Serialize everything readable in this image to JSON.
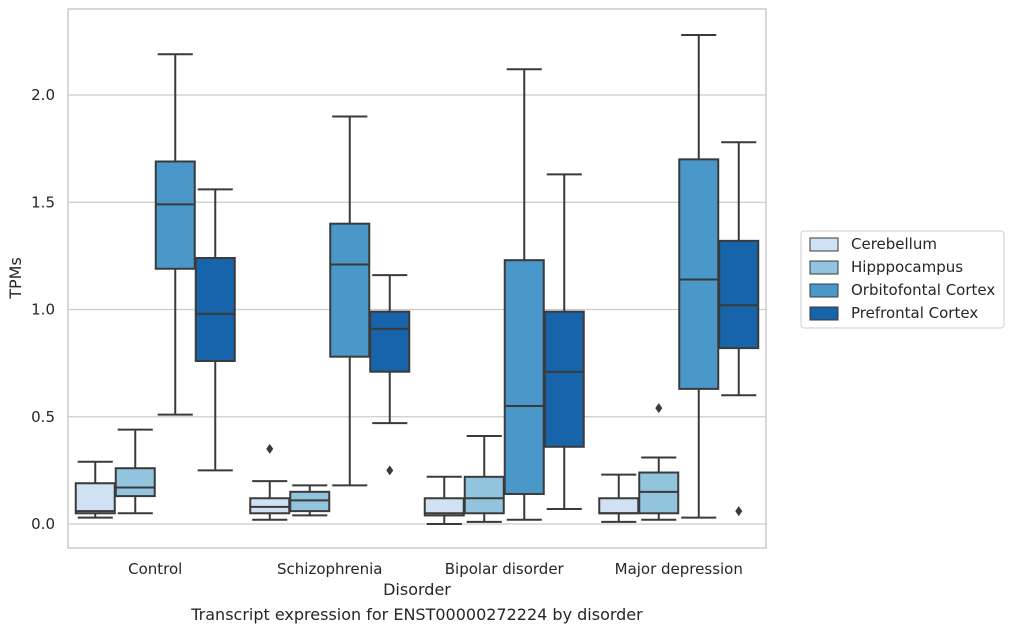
{
  "caption": "Transcript expression for ENST00000272224 by disorder",
  "chart_data": {
    "type": "box",
    "title": "",
    "xlabel": "Disorder",
    "ylabel": "TPMs",
    "categories": [
      "Control",
      "Schizophrenia",
      "Bipolar disorder",
      "Major depression"
    ],
    "ylim": [
      -0.11,
      2.4
    ],
    "yticks": [
      "0.0",
      "0.5",
      "1.0",
      "1.5",
      "2.0"
    ],
    "grid": true,
    "legend_position": "right",
    "series": [
      {
        "name": "Cerebellum",
        "color": "#cfe1f2",
        "boxes": [
          {
            "whisker_low": 0.03,
            "q1": 0.05,
            "median": 0.06,
            "q3": 0.19,
            "whisker_high": 0.29,
            "outliers": []
          },
          {
            "whisker_low": 0.02,
            "q1": 0.05,
            "median": 0.08,
            "q3": 0.12,
            "whisker_high": 0.2,
            "outliers": [
              0.35
            ]
          },
          {
            "whisker_low": 0.0,
            "q1": 0.04,
            "median": 0.05,
            "q3": 0.12,
            "whisker_high": 0.22,
            "outliers": []
          },
          {
            "whisker_low": 0.01,
            "q1": 0.05,
            "median": 0.05,
            "q3": 0.12,
            "whisker_high": 0.23,
            "outliers": []
          }
        ]
      },
      {
        "name": "Hipppocampus",
        "color": "#93c4de",
        "boxes": [
          {
            "whisker_low": 0.05,
            "q1": 0.13,
            "median": 0.17,
            "q3": 0.26,
            "whisker_high": 0.44,
            "outliers": []
          },
          {
            "whisker_low": 0.04,
            "q1": 0.06,
            "median": 0.11,
            "q3": 0.15,
            "whisker_high": 0.18,
            "outliers": []
          },
          {
            "whisker_low": 0.01,
            "q1": 0.05,
            "median": 0.12,
            "q3": 0.22,
            "whisker_high": 0.41,
            "outliers": []
          },
          {
            "whisker_low": 0.02,
            "q1": 0.05,
            "median": 0.15,
            "q3": 0.24,
            "whisker_high": 0.31,
            "outliers": [
              0.54
            ]
          }
        ]
      },
      {
        "name": "Orbitofontal Cortex",
        "color": "#4a98c9",
        "boxes": [
          {
            "whisker_low": 0.51,
            "q1": 1.19,
            "median": 1.49,
            "q3": 1.69,
            "whisker_high": 2.19,
            "outliers": []
          },
          {
            "whisker_low": 0.18,
            "q1": 0.78,
            "median": 1.21,
            "q3": 1.4,
            "whisker_high": 1.9,
            "outliers": []
          },
          {
            "whisker_low": 0.02,
            "q1": 0.14,
            "median": 0.55,
            "q3": 1.23,
            "whisker_high": 2.12,
            "outliers": []
          },
          {
            "whisker_low": 0.03,
            "q1": 0.63,
            "median": 1.14,
            "q3": 1.7,
            "whisker_high": 2.28,
            "outliers": []
          }
        ]
      },
      {
        "name": "Prefrontal Cortex",
        "color": "#1764ab",
        "boxes": [
          {
            "whisker_low": 0.25,
            "q1": 0.76,
            "median": 0.98,
            "q3": 1.24,
            "whisker_high": 1.56,
            "outliers": []
          },
          {
            "whisker_low": 0.47,
            "q1": 0.71,
            "median": 0.91,
            "q3": 0.99,
            "whisker_high": 1.16,
            "outliers": [
              0.25
            ]
          },
          {
            "whisker_low": 0.07,
            "q1": 0.36,
            "median": 0.71,
            "q3": 0.99,
            "whisker_high": 1.63,
            "outliers": []
          },
          {
            "whisker_low": 0.6,
            "q1": 0.82,
            "median": 1.02,
            "q3": 1.32,
            "whisker_high": 1.78,
            "outliers": [
              0.06
            ]
          }
        ]
      }
    ]
  }
}
